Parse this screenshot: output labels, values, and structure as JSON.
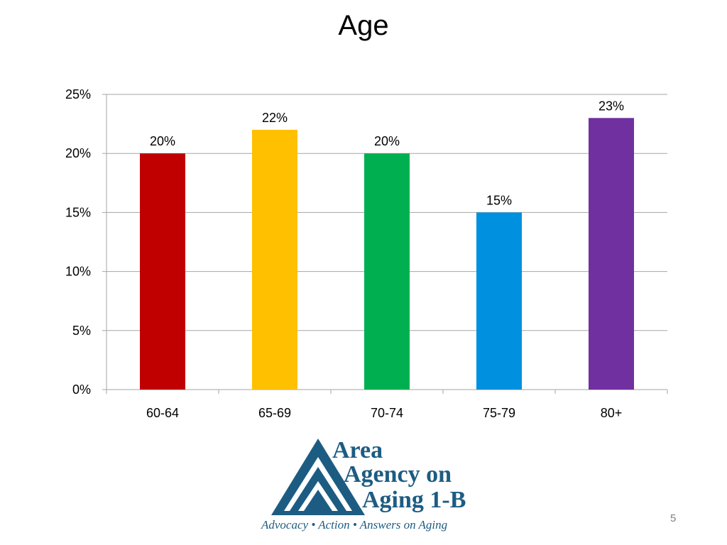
{
  "slide": {
    "title": "Age",
    "page_number": "5"
  },
  "logo": {
    "line1": "Area",
    "line2": "Agency on",
    "line3": "Aging 1-B",
    "tagline": "Advocacy • Action • Answers on Aging"
  },
  "chart_data": {
    "type": "bar",
    "title": "",
    "xlabel": "",
    "ylabel": "",
    "categories": [
      "60-64",
      "65-69",
      "70-74",
      "75-79",
      "80+"
    ],
    "values": [
      20,
      22,
      20,
      15,
      23
    ],
    "data_labels": [
      "20%",
      "22%",
      "20%",
      "15%",
      "23%"
    ],
    "bar_colors": [
      "#c00000",
      "#ffc000",
      "#00b050",
      "#0090e0",
      "#7030a0"
    ],
    "ylim": [
      0,
      25
    ],
    "yticks": [
      0,
      5,
      10,
      15,
      20,
      25
    ],
    "ytick_labels": [
      "0%",
      "5%",
      "10%",
      "15%",
      "20%",
      "25%"
    ],
    "grid": true,
    "legend": "none"
  }
}
